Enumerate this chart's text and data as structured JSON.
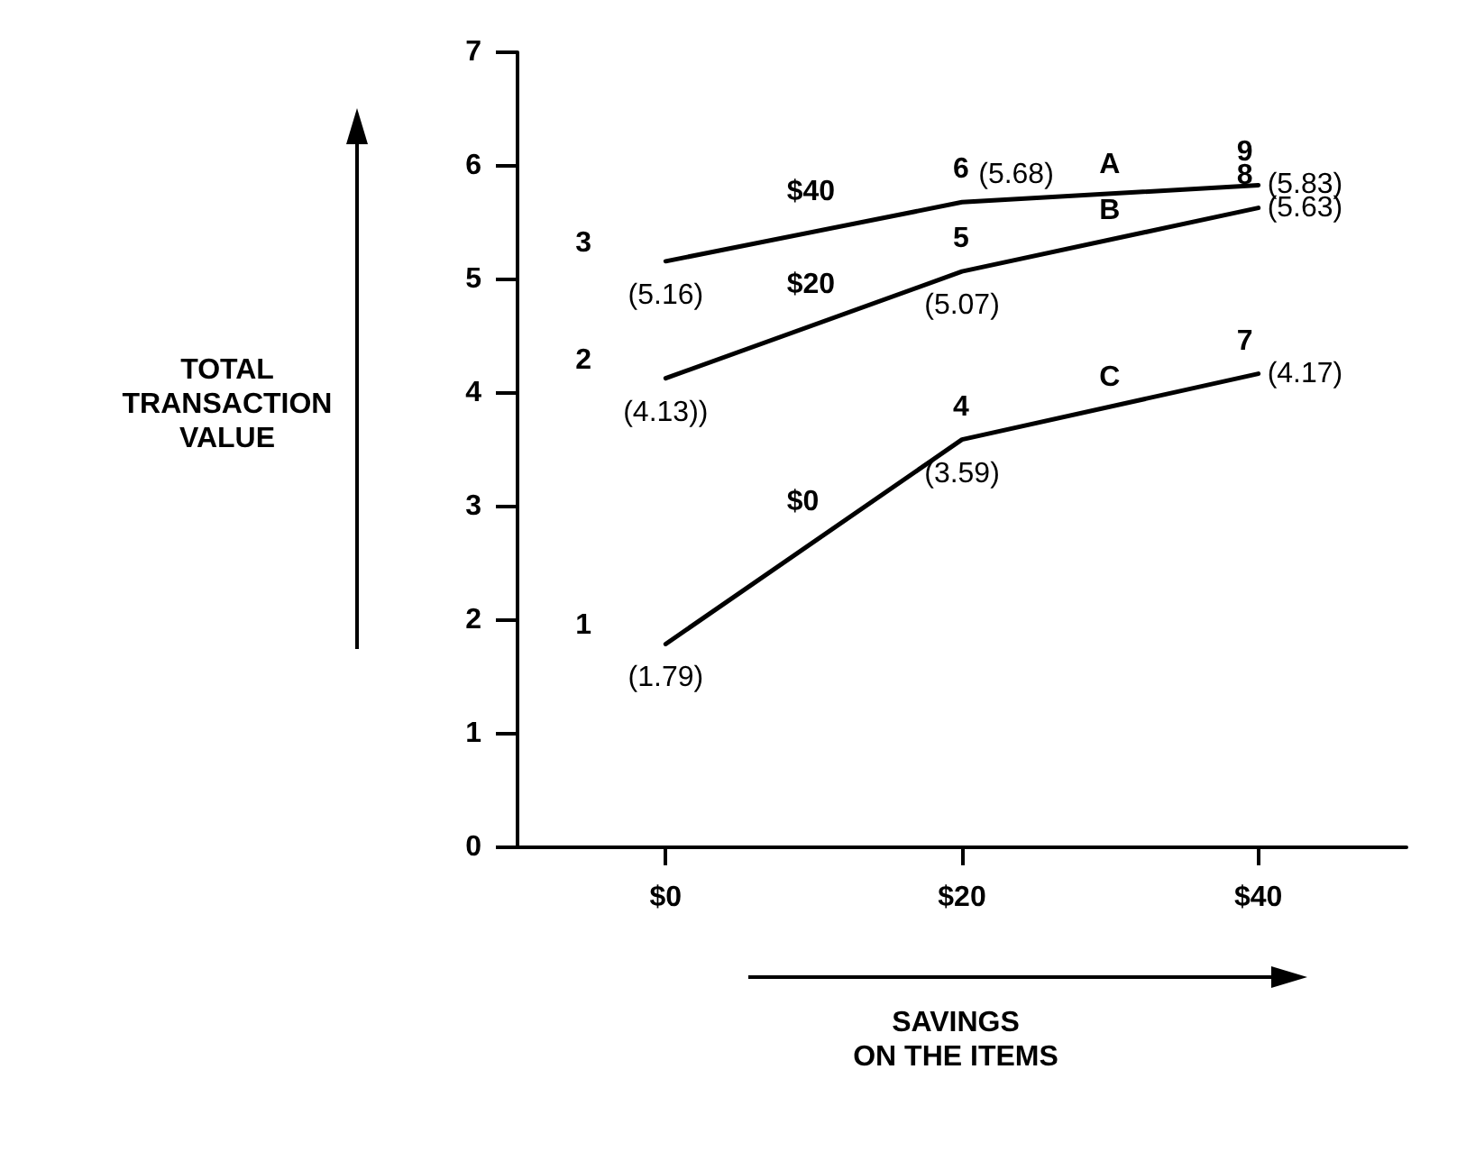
{
  "chart_data": {
    "type": "line",
    "ylabel": "TOTAL\nTRANSACTION\nVALUE",
    "xlabel": "SAVINGS\nON THE ITEMS",
    "categories": [
      "$0",
      "$20",
      "$40"
    ],
    "series": [
      {
        "name": "$0",
        "color": "#000000",
        "values": [
          1.79,
          3.59,
          4.17
        ],
        "value_labels": [
          "(1.79)",
          "(3.59)",
          "(4.17)"
        ]
      },
      {
        "name": "$20",
        "color": "#000000",
        "values": [
          4.13,
          5.07,
          5.63
        ],
        "value_labels": [
          "(4.13))",
          "(5.07)",
          "(5.63)"
        ]
      },
      {
        "name": "$40",
        "color": "#000000",
        "values": [
          5.16,
          5.68,
          5.83
        ],
        "value_labels": [
          "(5.16)",
          "(5.68)",
          "(5.83)"
        ]
      }
    ],
    "ylim": [
      0,
      7
    ],
    "yticks": [
      0,
      1,
      2,
      3,
      4,
      5,
      6,
      7
    ],
    "grid": false,
    "legend": false,
    "marker": "none",
    "line_style": "solid",
    "annotations": [
      {
        "text": "1",
        "x": "$0",
        "y": 1.79
      },
      {
        "text": "2",
        "x": "$0",
        "y": 4.13
      },
      {
        "text": "3",
        "x": "$0",
        "y": 5.16
      },
      {
        "text": "4",
        "x": "$20",
        "y": 3.59
      },
      {
        "text": "5",
        "x": "$20",
        "y": 5.07
      },
      {
        "text": "6",
        "x": "$20",
        "y": 5.68
      },
      {
        "text": "7",
        "x": "$40",
        "y": 4.17
      },
      {
        "text": "8",
        "x": "$40",
        "y": 5.63
      },
      {
        "text": "9",
        "x": "$40",
        "y": 5.83
      },
      "A",
      "B",
      "C"
    ]
  }
}
